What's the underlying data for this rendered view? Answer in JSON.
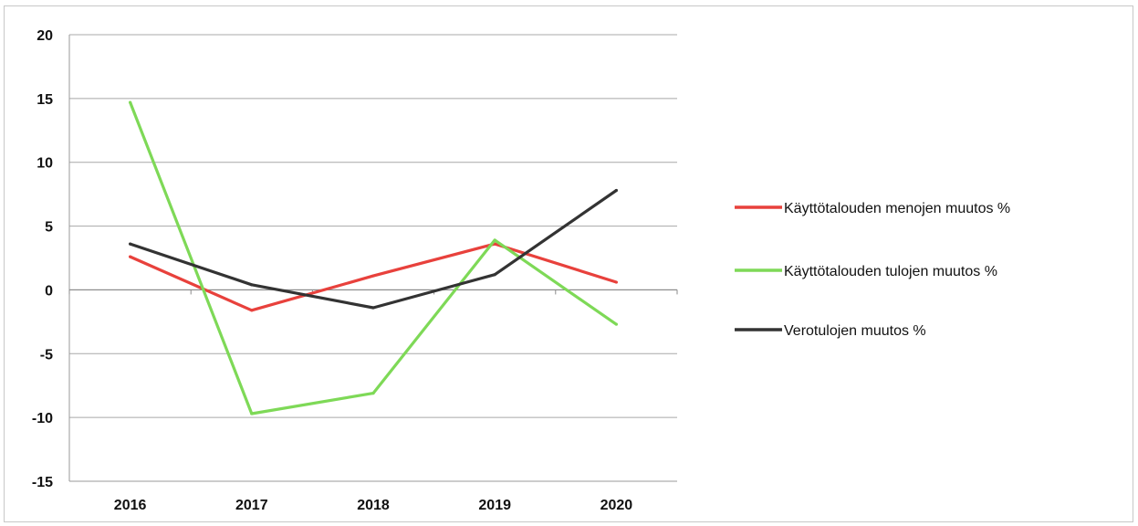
{
  "chart_data": {
    "type": "line",
    "categories": [
      "2016",
      "2017",
      "2018",
      "2019",
      "2020"
    ],
    "series": [
      {
        "name": "Käyttötalouden menojen muutos %",
        "color": "#e8413c",
        "values": [
          2.6,
          -1.6,
          1.1,
          3.6,
          0.6
        ]
      },
      {
        "name": "Käyttötalouden tulojen muutos %",
        "color": "#7ed957",
        "values": [
          14.7,
          -9.7,
          -8.1,
          3.9,
          -2.7
        ]
      },
      {
        "name": "Verotulojen muutos %",
        "color": "#333333",
        "values": [
          3.6,
          0.4,
          -1.4,
          1.2,
          7.8
        ]
      }
    ],
    "ylim": [
      -15,
      20
    ],
    "yticks": [
      "20",
      "15",
      "10",
      "5",
      "0",
      "-5",
      "-10",
      "-15"
    ],
    "ytick_values": [
      20,
      15,
      10,
      5,
      0,
      -5,
      -10,
      -15
    ],
    "grid": true,
    "legend_position": "right",
    "title": "",
    "xlabel": "",
    "ylabel": ""
  }
}
